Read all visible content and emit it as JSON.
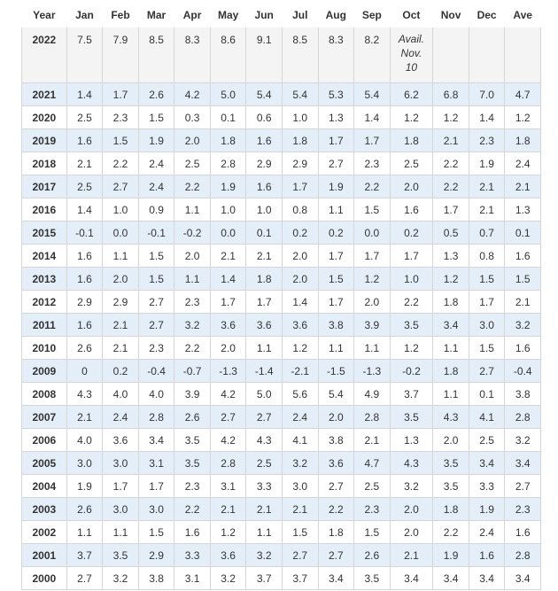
{
  "headers": [
    "Year",
    "Jan",
    "Feb",
    "Mar",
    "Apr",
    "May",
    "Jun",
    "Jul",
    "Aug",
    "Sep",
    "Oct",
    "Nov",
    "Dec",
    "Ave"
  ],
  "first_row": {
    "year": "2022",
    "values": [
      "7.5",
      "7.9",
      "8.5",
      "8.3",
      "8.6",
      "9.1",
      "8.5",
      "8.3",
      "8.2"
    ],
    "oct_note_lines": [
      "Avail.",
      "Nov.",
      "10"
    ],
    "rest": [
      "",
      "",
      ""
    ]
  },
  "rows": [
    {
      "year": "2021",
      "values": [
        "1.4",
        "1.7",
        "2.6",
        "4.2",
        "5.0",
        "5.4",
        "5.4",
        "5.3",
        "5.4",
        "6.2",
        "6.8",
        "7.0",
        "4.7"
      ]
    },
    {
      "year": "2020",
      "values": [
        "2.5",
        "2.3",
        "1.5",
        "0.3",
        "0.1",
        "0.6",
        "1.0",
        "1.3",
        "1.4",
        "1.2",
        "1.2",
        "1.4",
        "1.2"
      ]
    },
    {
      "year": "2019",
      "values": [
        "1.6",
        "1.5",
        "1.9",
        "2.0",
        "1.8",
        "1.6",
        "1.8",
        "1.7",
        "1.7",
        "1.8",
        "2.1",
        "2.3",
        "1.8"
      ]
    },
    {
      "year": "2018",
      "values": [
        "2.1",
        "2.2",
        "2.4",
        "2.5",
        "2.8",
        "2.9",
        "2.9",
        "2.7",
        "2.3",
        "2.5",
        "2.2",
        "1.9",
        "2.4"
      ]
    },
    {
      "year": "2017",
      "values": [
        "2.5",
        "2.7",
        "2.4",
        "2.2",
        "1.9",
        "1.6",
        "1.7",
        "1.9",
        "2.2",
        "2.0",
        "2.2",
        "2.1",
        "2.1"
      ]
    },
    {
      "year": "2016",
      "values": [
        "1.4",
        "1.0",
        "0.9",
        "1.1",
        "1.0",
        "1.0",
        "0.8",
        "1.1",
        "1.5",
        "1.6",
        "1.7",
        "2.1",
        "1.3"
      ]
    },
    {
      "year": "2015",
      "values": [
        "-0.1",
        "0.0",
        "-0.1",
        "-0.2",
        "0.0",
        "0.1",
        "0.2",
        "0.2",
        "0.0",
        "0.2",
        "0.5",
        "0.7",
        "0.1"
      ]
    },
    {
      "year": "2014",
      "values": [
        "1.6",
        "1.1",
        "1.5",
        "2.0",
        "2.1",
        "2.1",
        "2.0",
        "1.7",
        "1.7",
        "1.7",
        "1.3",
        "0.8",
        "1.6"
      ]
    },
    {
      "year": "2013",
      "values": [
        "1.6",
        "2.0",
        "1.5",
        "1.1",
        "1.4",
        "1.8",
        "2.0",
        "1.5",
        "1.2",
        "1.0",
        "1.2",
        "1.5",
        "1.5"
      ]
    },
    {
      "year": "2012",
      "values": [
        "2.9",
        "2.9",
        "2.7",
        "2.3",
        "1.7",
        "1.7",
        "1.4",
        "1.7",
        "2.0",
        "2.2",
        "1.8",
        "1.7",
        "2.1"
      ]
    },
    {
      "year": "2011",
      "values": [
        "1.6",
        "2.1",
        "2.7",
        "3.2",
        "3.6",
        "3.6",
        "3.6",
        "3.8",
        "3.9",
        "3.5",
        "3.4",
        "3.0",
        "3.2"
      ]
    },
    {
      "year": "2010",
      "values": [
        "2.6",
        "2.1",
        "2.3",
        "2.2",
        "2.0",
        "1.1",
        "1.2",
        "1.1",
        "1.1",
        "1.2",
        "1.1",
        "1.5",
        "1.6"
      ]
    },
    {
      "year": "2009",
      "values": [
        "0",
        "0.2",
        "-0.4",
        "-0.7",
        "-1.3",
        "-1.4",
        "-2.1",
        "-1.5",
        "-1.3",
        "-0.2",
        "1.8",
        "2.7",
        "-0.4"
      ]
    },
    {
      "year": "2008",
      "values": [
        "4.3",
        "4.0",
        "4.0",
        "3.9",
        "4.2",
        "5.0",
        "5.6",
        "5.4",
        "4.9",
        "3.7",
        "1.1",
        "0.1",
        "3.8"
      ]
    },
    {
      "year": "2007",
      "values": [
        "2.1",
        "2.4",
        "2.8",
        "2.6",
        "2.7",
        "2.7",
        "2.4",
        "2.0",
        "2.8",
        "3.5",
        "4.3",
        "4.1",
        "2.8"
      ]
    },
    {
      "year": "2006",
      "values": [
        "4.0",
        "3.6",
        "3.4",
        "3.5",
        "4.2",
        "4.3",
        "4.1",
        "3.8",
        "2.1",
        "1.3",
        "2.0",
        "2.5",
        "3.2"
      ]
    },
    {
      "year": "2005",
      "values": [
        "3.0",
        "3.0",
        "3.1",
        "3.5",
        "2.8",
        "2.5",
        "3.2",
        "3.6",
        "4.7",
        "4.3",
        "3.5",
        "3.4",
        "3.4"
      ]
    },
    {
      "year": "2004",
      "values": [
        "1.9",
        "1.7",
        "1.7",
        "2.3",
        "3.1",
        "3.3",
        "3.0",
        "2.7",
        "2.5",
        "3.2",
        "3.5",
        "3.3",
        "2.7"
      ]
    },
    {
      "year": "2003",
      "values": [
        "2.6",
        "3.0",
        "3.0",
        "2.2",
        "2.1",
        "2.1",
        "2.1",
        "2.2",
        "2.3",
        "2.0",
        "1.8",
        "1.9",
        "2.3"
      ]
    },
    {
      "year": "2002",
      "values": [
        "1.1",
        "1.1",
        "1.5",
        "1.6",
        "1.2",
        "1.1",
        "1.5",
        "1.8",
        "1.5",
        "2.0",
        "2.2",
        "2.4",
        "1.6"
      ]
    },
    {
      "year": "2001",
      "values": [
        "3.7",
        "3.5",
        "2.9",
        "3.3",
        "3.6",
        "3.2",
        "2.7",
        "2.7",
        "2.6",
        "2.1",
        "1.9",
        "1.6",
        "2.8"
      ]
    },
    {
      "year": "2000",
      "values": [
        "2.7",
        "3.2",
        "3.8",
        "3.1",
        "3.2",
        "3.7",
        "3.7",
        "3.4",
        "3.5",
        "3.4",
        "3.4",
        "3.4",
        "3.4"
      ]
    }
  ],
  "colors": {
    "stripe": "#e4eef9",
    "first_row_bg": "#f4f4f4",
    "border": "#d6d6d6",
    "text": "#333333"
  }
}
